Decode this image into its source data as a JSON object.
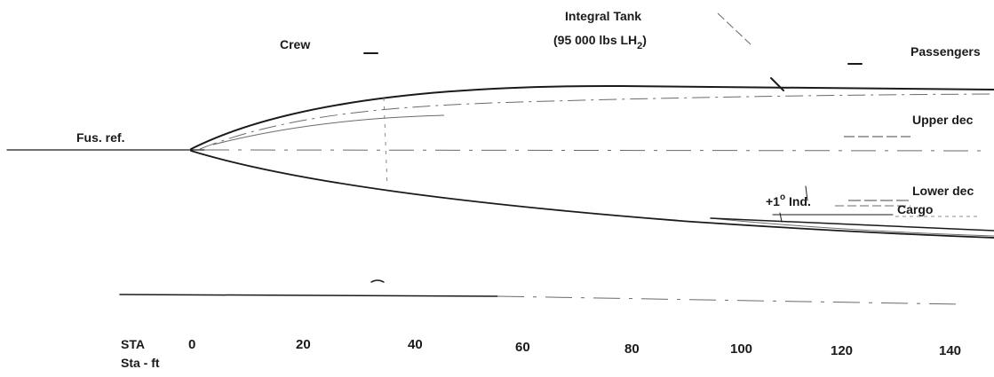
{
  "labels": {
    "crew": "Crew",
    "tank_line1": "Integral Tank",
    "tank_line2_prefix": "(95 000 lbs LH",
    "tank_line2_sub": "2",
    "tank_line2_suffix": ")",
    "passengers": "Passengers",
    "upper_deck": "Upper dec",
    "lower_deck": "Lower dec",
    "cargo": "Cargo",
    "fus_ref": "Fus. ref.",
    "incidence_prefix": "+1",
    "incidence_sup": "o",
    "incidence_suffix": " Ind.",
    "sta": "STA",
    "sta_ft": "Sta - ft"
  },
  "stations": [
    "0",
    "20",
    "40",
    "60",
    "80",
    "100",
    "120",
    "140"
  ]
}
